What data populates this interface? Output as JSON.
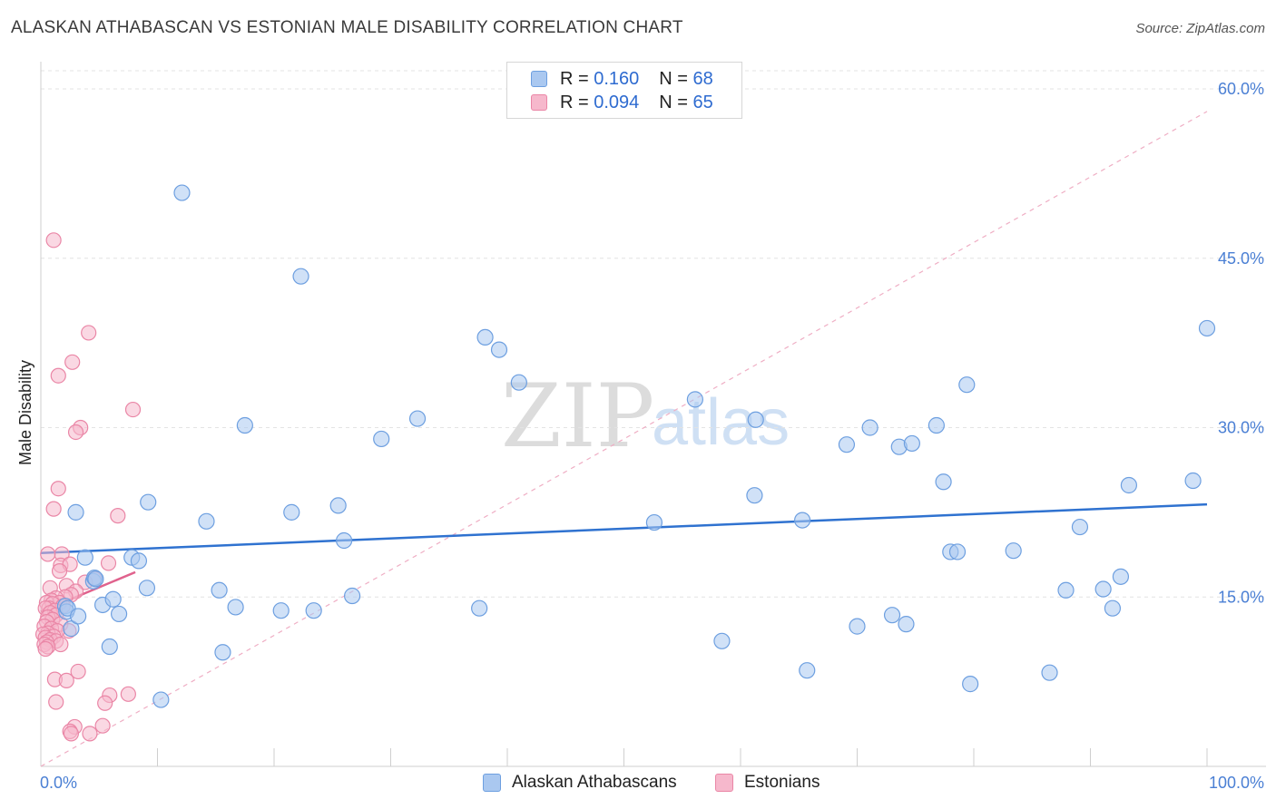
{
  "title": "ALASKAN ATHABASCAN VS ESTONIAN MALE DISABILITY CORRELATION CHART",
  "source": "Source: ZipAtlas.com",
  "watermark": {
    "zip": "ZIP",
    "atlas": "atlas"
  },
  "legend": {
    "rows": [
      {
        "r_label": "R =",
        "r_value": "0.160",
        "n_label": "N =",
        "n_value": "68"
      },
      {
        "r_label": "R =",
        "r_value": "0.094",
        "n_label": "N =",
        "n_value": "65"
      }
    ]
  },
  "bottom_legend": {
    "series1": "Alaskan Athabascans",
    "series2": "Estonians"
  },
  "colors": {
    "blue_fill": "#aac8f0",
    "blue_stroke": "#6d9fe0",
    "blue_line": "#2f72d0",
    "pink_fill": "#f6b8cc",
    "pink_stroke": "#ea86a6",
    "pink_line": "#e0628d",
    "tick_label": "#4a7fd4",
    "grid": "#e3e3e3"
  },
  "chart_data": {
    "type": "scatter",
    "title": "ALASKAN ATHABASCAN VS ESTONIAN MALE DISABILITY CORRELATION CHART",
    "xlabel": "",
    "ylabel": "Male Disability",
    "xlim": [
      0,
      100
    ],
    "ylim": [
      0,
      0.6
    ],
    "x_tick_labels": [
      "0.0%",
      "100.0%"
    ],
    "y_ticks": [
      0.15,
      0.3,
      0.45,
      0.6
    ],
    "y_tick_labels": [
      "15.0%",
      "30.0%",
      "45.0%",
      "60.0%"
    ],
    "grid": true,
    "legend_position": "top-center",
    "series": [
      {
        "name": "Alaskan Athabascans",
        "color": "#6d9fe0",
        "trend": {
          "x": [
            0,
            100
          ],
          "y": [
            0.189,
            0.232
          ]
        },
        "points": [
          [
            12.1,
            0.508
          ],
          [
            22.3,
            0.434
          ],
          [
            38.1,
            0.38
          ],
          [
            39.3,
            0.369
          ],
          [
            41.0,
            0.34
          ],
          [
            100.0,
            0.388
          ],
          [
            79.4,
            0.338
          ],
          [
            56.1,
            0.325
          ],
          [
            32.3,
            0.308
          ],
          [
            29.2,
            0.29
          ],
          [
            17.5,
            0.302
          ],
          [
            61.3,
            0.307
          ],
          [
            71.1,
            0.3
          ],
          [
            76.8,
            0.302
          ],
          [
            69.1,
            0.285
          ],
          [
            73.6,
            0.283
          ],
          [
            74.7,
            0.286
          ],
          [
            77.4,
            0.252
          ],
          [
            93.3,
            0.249
          ],
          [
            98.8,
            0.253
          ],
          [
            9.2,
            0.234
          ],
          [
            3.0,
            0.225
          ],
          [
            25.5,
            0.231
          ],
          [
            21.5,
            0.225
          ],
          [
            61.2,
            0.24
          ],
          [
            14.2,
            0.217
          ],
          [
            52.6,
            0.216
          ],
          [
            65.3,
            0.218
          ],
          [
            26.0,
            0.2
          ],
          [
            89.1,
            0.212
          ],
          [
            78.0,
            0.19
          ],
          [
            78.6,
            0.19
          ],
          [
            83.4,
            0.191
          ],
          [
            3.8,
            0.185
          ],
          [
            7.8,
            0.185
          ],
          [
            8.4,
            0.182
          ],
          [
            4.5,
            0.164
          ],
          [
            4.6,
            0.167
          ],
          [
            4.7,
            0.166
          ],
          [
            9.1,
            0.158
          ],
          [
            15.3,
            0.156
          ],
          [
            87.9,
            0.156
          ],
          [
            91.1,
            0.157
          ],
          [
            92.6,
            0.168
          ],
          [
            2.1,
            0.142
          ],
          [
            2.2,
            0.137
          ],
          [
            5.3,
            0.143
          ],
          [
            6.2,
            0.148
          ],
          [
            6.7,
            0.135
          ],
          [
            16.7,
            0.141
          ],
          [
            20.6,
            0.138
          ],
          [
            23.4,
            0.138
          ],
          [
            26.7,
            0.151
          ],
          [
            37.6,
            0.14
          ],
          [
            73.0,
            0.134
          ],
          [
            91.9,
            0.14
          ],
          [
            2.6,
            0.122
          ],
          [
            58.4,
            0.111
          ],
          [
            70.0,
            0.124
          ],
          [
            74.2,
            0.126
          ],
          [
            5.9,
            0.106
          ],
          [
            15.6,
            0.101
          ],
          [
            65.7,
            0.085
          ],
          [
            86.5,
            0.083
          ],
          [
            79.7,
            0.073
          ],
          [
            10.3,
            0.059
          ],
          [
            2.3,
            0.14
          ],
          [
            3.2,
            0.133
          ]
        ]
      },
      {
        "name": "Estonians",
        "color": "#ea86a6",
        "trend": {
          "x": [
            0,
            8.1
          ],
          "y": [
            0.137,
            0.172
          ]
        },
        "points": [
          [
            1.1,
            0.466
          ],
          [
            4.1,
            0.384
          ],
          [
            2.7,
            0.358
          ],
          [
            1.5,
            0.346
          ],
          [
            7.9,
            0.316
          ],
          [
            3.4,
            0.3
          ],
          [
            3.0,
            0.296
          ],
          [
            1.5,
            0.246
          ],
          [
            1.1,
            0.228
          ],
          [
            6.6,
            0.222
          ],
          [
            1.8,
            0.188
          ],
          [
            0.6,
            0.188
          ],
          [
            5.8,
            0.18
          ],
          [
            1.7,
            0.178
          ],
          [
            2.5,
            0.179
          ],
          [
            1.6,
            0.173
          ],
          [
            4.6,
            0.166
          ],
          [
            3.8,
            0.163
          ],
          [
            2.2,
            0.16
          ],
          [
            0.8,
            0.158
          ],
          [
            3.0,
            0.155
          ],
          [
            2.6,
            0.152
          ],
          [
            2.1,
            0.15
          ],
          [
            1.3,
            0.149
          ],
          [
            0.9,
            0.147
          ],
          [
            1.6,
            0.145
          ],
          [
            0.5,
            0.145
          ],
          [
            1.0,
            0.144
          ],
          [
            1.9,
            0.142
          ],
          [
            0.7,
            0.14
          ],
          [
            0.4,
            0.14
          ],
          [
            1.2,
            0.138
          ],
          [
            0.8,
            0.136
          ],
          [
            1.3,
            0.134
          ],
          [
            0.6,
            0.132
          ],
          [
            1.0,
            0.13
          ],
          [
            0.5,
            0.128
          ],
          [
            1.7,
            0.126
          ],
          [
            0.3,
            0.124
          ],
          [
            0.9,
            0.122
          ],
          [
            2.4,
            0.12
          ],
          [
            1.4,
            0.12
          ],
          [
            0.6,
            0.118
          ],
          [
            0.2,
            0.117
          ],
          [
            1.1,
            0.115
          ],
          [
            0.4,
            0.114
          ],
          [
            0.8,
            0.112
          ],
          [
            1.3,
            0.111
          ],
          [
            0.5,
            0.11
          ],
          [
            0.3,
            0.108
          ],
          [
            1.7,
            0.108
          ],
          [
            0.6,
            0.106
          ],
          [
            0.4,
            0.104
          ],
          [
            3.2,
            0.084
          ],
          [
            1.2,
            0.077
          ],
          [
            2.2,
            0.076
          ],
          [
            7.5,
            0.064
          ],
          [
            5.9,
            0.063
          ],
          [
            1.3,
            0.057
          ],
          [
            5.5,
            0.056
          ],
          [
            2.9,
            0.035
          ],
          [
            5.3,
            0.036
          ],
          [
            2.5,
            0.031
          ],
          [
            4.2,
            0.029
          ],
          [
            2.6,
            0.029
          ]
        ]
      }
    ],
    "diagonal_reference": {
      "x": [
        0,
        100
      ],
      "y": [
        0.0,
        0.58
      ]
    }
  }
}
